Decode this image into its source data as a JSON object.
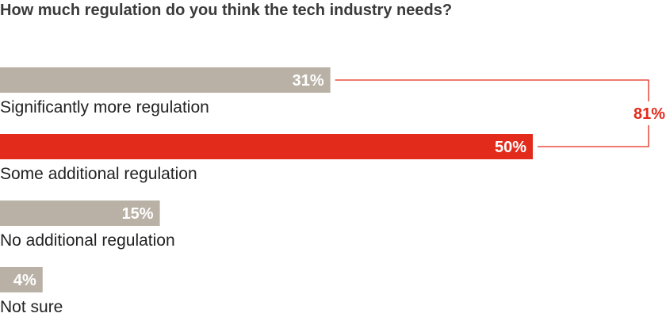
{
  "chart_data": {
    "type": "bar",
    "orientation": "horizontal",
    "title": "How much regulation do you think the tech industry needs?",
    "categories": [
      "Significantly more regulation",
      "Some additional regulation",
      "No additional regulation",
      "Not sure"
    ],
    "values": [
      31,
      50,
      15,
      4
    ],
    "value_labels": [
      "31%",
      "50%",
      "15%",
      "4%"
    ],
    "xlim": [
      0,
      62.5
    ],
    "highlight_index": 1,
    "bracket": {
      "from_index": 0,
      "to_index": 1,
      "total_label": "81%"
    },
    "colors": {
      "default": "#b9b1a5",
      "highlight": "#e32b1b",
      "bracket": "#e32b1b",
      "label": "#ffffff"
    }
  }
}
